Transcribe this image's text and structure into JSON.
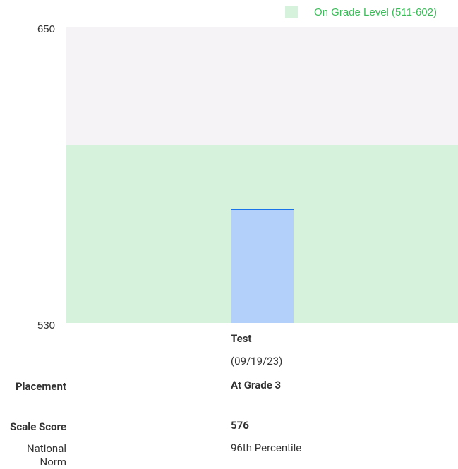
{
  "chart_data": {
    "type": "bar",
    "categories": [
      "Test"
    ],
    "category_dates": [
      "(09/19/23)"
    ],
    "values": [
      576
    ],
    "color": "#b3d0fb",
    "line_color": "#1a73e8",
    "ylim": [
      530,
      650
    ],
    "yticks": [
      530,
      650
    ],
    "band": {
      "label": "On Grade Level (511-602)",
      "range": [
        511,
        602
      ],
      "color": "#d7f2dc",
      "text_color": "#3dbb5a"
    },
    "background": "#f5f3f5"
  },
  "rows": [
    {
      "label": "Placement",
      "value": "At Grade 3"
    },
    {
      "label": "Scale Score"
    },
    {
      "label": "National Norm",
      "value": "96th Percentile"
    }
  ]
}
